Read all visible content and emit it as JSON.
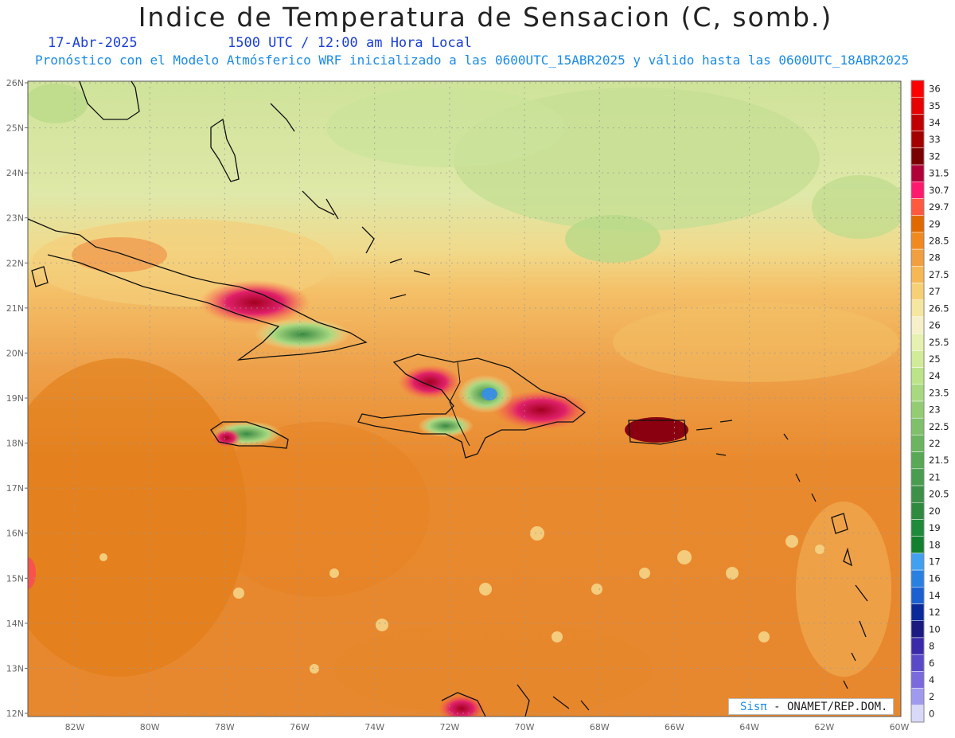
{
  "header": {
    "title": "Indice de Temperatura de Sensacion (C, somb.)",
    "date": "17-Abr-2025",
    "time": "1500 UTC / 12:00 am Hora Local",
    "subtitle": "Pronóstico con el Modelo Atmósferico WRF inicializado a las 0600UTC_15ABR2025 y válido hasta las  0600UTC_18ABR2025"
  },
  "axes": {
    "lat_labels": [
      "26N",
      "25N",
      "24N",
      "23N",
      "22N",
      "21N",
      "20N",
      "19N",
      "18N",
      "17N",
      "16N",
      "15N",
      "14N",
      "13N",
      "12N"
    ],
    "lon_labels": [
      "82W",
      "80W",
      "78W",
      "76W",
      "74W",
      "72W",
      "70W",
      "68W",
      "66W",
      "64W",
      "62W",
      "60W"
    ]
  },
  "legend": {
    "labels": [
      "36",
      "35",
      "34",
      "33",
      "32",
      "31.5",
      "30.7",
      "29.7",
      "29",
      "28.5",
      "28",
      "27.5",
      "27",
      "26.5",
      "26",
      "25.5",
      "25",
      "24",
      "23.5",
      "23",
      "22.5",
      "22",
      "21.5",
      "21",
      "20.5",
      "20",
      "19",
      "18",
      "17",
      "16",
      "14",
      "12",
      "10",
      "8",
      "6",
      "4",
      "2",
      "0"
    ],
    "colors": [
      "#ff0000",
      "#e60000",
      "#c00000",
      "#a30000",
      "#7a0000",
      "#b0003a",
      "#ff1a6e",
      "#ff5a40",
      "#e06a00",
      "#f08a20",
      "#f0a040",
      "#f5b855",
      "#f5d075",
      "#f5e6a0",
      "#f5f0c8",
      "#e6f0b0",
      "#d2eb9a",
      "#bce38a",
      "#a8d880",
      "#94cc74",
      "#80c06a",
      "#6cb460",
      "#58a856",
      "#4a9c50",
      "#3d9048",
      "#2e8a3e",
      "#1e8a3a",
      "#12802e",
      "#42a0f0",
      "#2a80e0",
      "#1a60d0",
      "#0a2a9a",
      "#1a1a80",
      "#3a2aaa",
      "#5a4ac8",
      "#7a6ade",
      "#a09aee",
      "#d8d8f8"
    ]
  },
  "regions": {
    "places": [
      "Cuba",
      "Jamaica",
      "Hispaniola",
      "Puerto Rico",
      "Bahamas",
      "Lesser Antilles",
      "Venezuela coast"
    ]
  },
  "credit": {
    "brand": "Sisπ",
    "text": " - ONAMET/REP.DOM."
  }
}
